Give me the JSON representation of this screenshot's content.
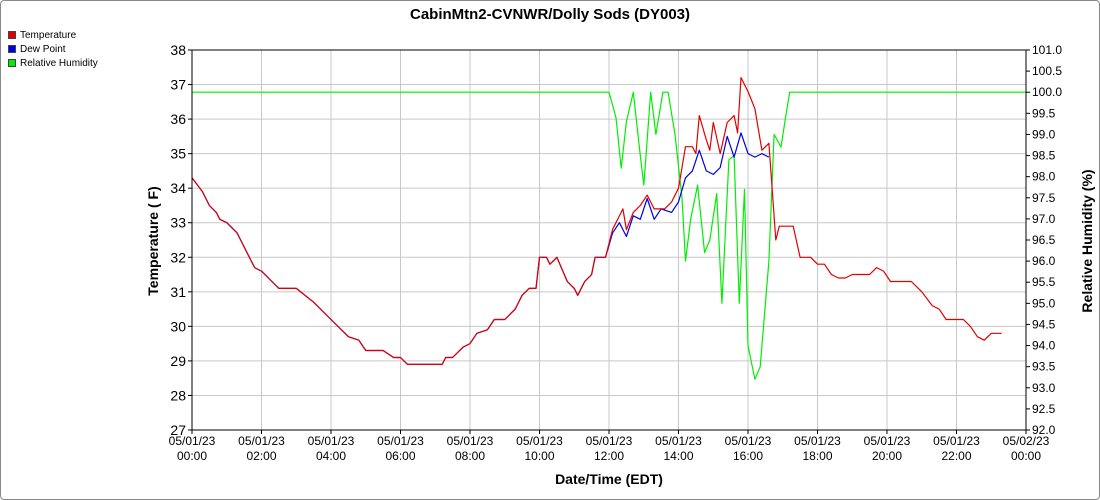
{
  "chart_data": {
    "type": "line",
    "title": "CabinMtn2-CVNWR/Dolly Sods (DY003)",
    "xlabel": "Date/Time (EDT)",
    "ylabel_left": "Temperature ( F)",
    "ylabel_right": "Relative Humidity (%)",
    "x_ticks": [
      {
        "date": "05/01/23",
        "time": "00:00"
      },
      {
        "date": "05/01/23",
        "time": "02:00"
      },
      {
        "date": "05/01/23",
        "time": "04:00"
      },
      {
        "date": "05/01/23",
        "time": "06:00"
      },
      {
        "date": "05/01/23",
        "time": "08:00"
      },
      {
        "date": "05/01/23",
        "time": "10:00"
      },
      {
        "date": "05/01/23",
        "time": "12:00"
      },
      {
        "date": "05/01/23",
        "time": "14:00"
      },
      {
        "date": "05/01/23",
        "time": "16:00"
      },
      {
        "date": "05/01/23",
        "time": "18:00"
      },
      {
        "date": "05/01/23",
        "time": "20:00"
      },
      {
        "date": "05/01/23",
        "time": "22:00"
      },
      {
        "date": "05/02/23",
        "time": "00:00"
      }
    ],
    "xlim_hours": [
      0,
      24
    ],
    "ylim_left": [
      27,
      38
    ],
    "ylim_right": [
      92.0,
      101.0
    ],
    "y_ticks_left": [
      "27",
      "28",
      "29",
      "30",
      "31",
      "32",
      "33",
      "34",
      "35",
      "36",
      "37",
      "38"
    ],
    "y_ticks_right": [
      "92.0",
      "92.5",
      "93.0",
      "93.5",
      "94.0",
      "94.5",
      "95.0",
      "95.5",
      "96.0",
      "96.5",
      "97.0",
      "97.5",
      "98.0",
      "98.5",
      "99.0",
      "99.5",
      "100.0",
      "100.5",
      "101.0"
    ],
    "grid": true,
    "legend_position": "top-left",
    "series": [
      {
        "name": "Temperature",
        "axis": "left",
        "color": "#e00000",
        "points": [
          [
            0,
            34.3
          ],
          [
            0.3,
            33.9
          ],
          [
            0.5,
            33.5
          ],
          [
            0.7,
            33.3
          ],
          [
            0.8,
            33.1
          ],
          [
            1.0,
            33.0
          ],
          [
            1.3,
            32.7
          ],
          [
            1.5,
            32.3
          ],
          [
            1.8,
            31.7
          ],
          [
            2.0,
            31.6
          ],
          [
            2.3,
            31.3
          ],
          [
            2.5,
            31.1
          ],
          [
            3.0,
            31.1
          ],
          [
            3.5,
            30.7
          ],
          [
            4.0,
            30.2
          ],
          [
            4.5,
            29.7
          ],
          [
            4.8,
            29.6
          ],
          [
            5.0,
            29.3
          ],
          [
            5.5,
            29.3
          ],
          [
            5.8,
            29.1
          ],
          [
            6.0,
            29.1
          ],
          [
            6.2,
            28.9
          ],
          [
            7.0,
            28.9
          ],
          [
            7.2,
            28.9
          ],
          [
            7.3,
            29.1
          ],
          [
            7.5,
            29.1
          ],
          [
            7.8,
            29.4
          ],
          [
            8.0,
            29.5
          ],
          [
            8.2,
            29.8
          ],
          [
            8.5,
            29.9
          ],
          [
            8.7,
            30.2
          ],
          [
            9.0,
            30.2
          ],
          [
            9.3,
            30.5
          ],
          [
            9.5,
            30.9
          ],
          [
            9.7,
            31.1
          ],
          [
            9.9,
            31.1
          ],
          [
            10.0,
            32.0
          ],
          [
            10.2,
            32.0
          ],
          [
            10.3,
            31.8
          ],
          [
            10.5,
            32.0
          ],
          [
            10.8,
            31.3
          ],
          [
            11.0,
            31.1
          ],
          [
            11.1,
            30.9
          ],
          [
            11.3,
            31.3
          ],
          [
            11.5,
            31.5
          ],
          [
            11.6,
            32.0
          ],
          [
            11.9,
            32.0
          ],
          [
            12.1,
            32.8
          ],
          [
            12.4,
            33.4
          ],
          [
            12.5,
            32.8
          ],
          [
            12.7,
            33.3
          ],
          [
            12.9,
            33.5
          ],
          [
            13.1,
            33.8
          ],
          [
            13.3,
            33.4
          ],
          [
            13.6,
            33.4
          ],
          [
            13.8,
            33.6
          ],
          [
            14.0,
            34.0
          ],
          [
            14.2,
            35.2
          ],
          [
            14.4,
            35.2
          ],
          [
            14.5,
            35.0
          ],
          [
            14.6,
            36.1
          ],
          [
            14.8,
            35.4
          ],
          [
            14.9,
            35.1
          ],
          [
            15.0,
            35.9
          ],
          [
            15.2,
            35.0
          ],
          [
            15.4,
            35.9
          ],
          [
            15.6,
            36.1
          ],
          [
            15.7,
            35.6
          ],
          [
            15.8,
            37.2
          ],
          [
            16.0,
            36.8
          ],
          [
            16.2,
            36.3
          ],
          [
            16.4,
            35.1
          ],
          [
            16.6,
            35.3
          ],
          [
            16.8,
            32.5
          ],
          [
            16.9,
            32.9
          ],
          [
            17.3,
            32.9
          ],
          [
            17.5,
            32.0
          ],
          [
            17.8,
            32.0
          ],
          [
            18.0,
            31.8
          ],
          [
            18.2,
            31.8
          ],
          [
            18.4,
            31.5
          ],
          [
            18.6,
            31.4
          ],
          [
            18.8,
            31.4
          ],
          [
            19.0,
            31.5
          ],
          [
            19.5,
            31.5
          ],
          [
            19.7,
            31.7
          ],
          [
            19.9,
            31.6
          ],
          [
            20.1,
            31.3
          ],
          [
            20.7,
            31.3
          ],
          [
            21.0,
            31.0
          ],
          [
            21.3,
            30.6
          ],
          [
            21.5,
            30.5
          ],
          [
            21.7,
            30.2
          ],
          [
            22.2,
            30.2
          ],
          [
            22.4,
            30.0
          ],
          [
            22.6,
            29.7
          ],
          [
            22.8,
            29.6
          ],
          [
            23.0,
            29.8
          ],
          [
            23.3,
            29.8
          ]
        ]
      },
      {
        "name": "Dew Point",
        "axis": "left",
        "color": "#0000e0",
        "points": [
          [
            0,
            34.3
          ],
          [
            0.3,
            33.9
          ],
          [
            0.5,
            33.5
          ],
          [
            0.7,
            33.3
          ],
          [
            0.8,
            33.1
          ],
          [
            1.0,
            33.0
          ],
          [
            1.3,
            32.7
          ],
          [
            1.5,
            32.3
          ],
          [
            1.8,
            31.7
          ],
          [
            2.0,
            31.6
          ],
          [
            2.3,
            31.3
          ],
          [
            2.5,
            31.1
          ],
          [
            3.0,
            31.1
          ],
          [
            3.5,
            30.7
          ],
          [
            4.0,
            30.2
          ],
          [
            4.5,
            29.7
          ],
          [
            4.8,
            29.6
          ],
          [
            5.0,
            29.3
          ],
          [
            5.5,
            29.3
          ],
          [
            5.8,
            29.1
          ],
          [
            6.0,
            29.1
          ],
          [
            6.2,
            28.9
          ],
          [
            7.0,
            28.9
          ],
          [
            7.2,
            28.9
          ],
          [
            7.3,
            29.1
          ],
          [
            7.5,
            29.1
          ],
          [
            7.8,
            29.4
          ],
          [
            8.0,
            29.5
          ],
          [
            8.2,
            29.8
          ],
          [
            8.5,
            29.9
          ],
          [
            8.7,
            30.2
          ],
          [
            9.0,
            30.2
          ],
          [
            9.3,
            30.5
          ],
          [
            9.5,
            30.9
          ],
          [
            9.7,
            31.1
          ],
          [
            9.9,
            31.1
          ],
          [
            10.0,
            32.0
          ],
          [
            10.2,
            32.0
          ],
          [
            10.3,
            31.8
          ],
          [
            10.5,
            32.0
          ],
          [
            10.8,
            31.3
          ],
          [
            11.0,
            31.1
          ],
          [
            11.1,
            30.9
          ],
          [
            11.3,
            31.3
          ],
          [
            11.5,
            31.5
          ],
          [
            11.6,
            32.0
          ],
          [
            11.9,
            32.0
          ],
          [
            12.1,
            32.7
          ],
          [
            12.3,
            33.0
          ],
          [
            12.5,
            32.6
          ],
          [
            12.7,
            33.2
          ],
          [
            12.9,
            33.1
          ],
          [
            13.1,
            33.7
          ],
          [
            13.3,
            33.1
          ],
          [
            13.5,
            33.4
          ],
          [
            13.8,
            33.3
          ],
          [
            14.0,
            33.6
          ],
          [
            14.2,
            34.3
          ],
          [
            14.4,
            34.5
          ],
          [
            14.6,
            35.1
          ],
          [
            14.8,
            34.5
          ],
          [
            15.0,
            34.4
          ],
          [
            15.2,
            34.6
          ],
          [
            15.4,
            35.5
          ],
          [
            15.6,
            34.9
          ],
          [
            15.8,
            35.6
          ],
          [
            16.0,
            35.0
          ],
          [
            16.2,
            34.9
          ],
          [
            16.4,
            35.0
          ],
          [
            16.6,
            34.9
          ]
        ]
      },
      {
        "name": "Relative Humidity",
        "axis": "right",
        "color": "#00ee00",
        "points": [
          [
            0,
            100.0
          ],
          [
            12.0,
            100.0
          ],
          [
            12.2,
            99.4
          ],
          [
            12.35,
            98.2
          ],
          [
            12.5,
            99.3
          ],
          [
            12.7,
            100.0
          ],
          [
            12.9,
            98.5
          ],
          [
            13.0,
            97.8
          ],
          [
            13.2,
            100.0
          ],
          [
            13.35,
            99.0
          ],
          [
            13.55,
            100.0
          ],
          [
            13.7,
            100.0
          ],
          [
            13.9,
            99.0
          ],
          [
            14.1,
            97.5
          ],
          [
            14.2,
            96.0
          ],
          [
            14.35,
            97.0
          ],
          [
            14.55,
            97.8
          ],
          [
            14.75,
            96.2
          ],
          [
            14.9,
            96.5
          ],
          [
            15.1,
            97.6
          ],
          [
            15.25,
            95.0
          ],
          [
            15.45,
            98.4
          ],
          [
            15.6,
            98.5
          ],
          [
            15.75,
            95.0
          ],
          [
            15.9,
            97.7
          ],
          [
            16.0,
            94.0
          ],
          [
            16.2,
            93.2
          ],
          [
            16.35,
            93.5
          ],
          [
            16.6,
            96.0
          ],
          [
            16.75,
            99.0
          ],
          [
            16.95,
            98.7
          ],
          [
            17.1,
            99.5
          ],
          [
            17.2,
            100.0
          ],
          [
            24.0,
            100.0
          ]
        ]
      }
    ]
  }
}
